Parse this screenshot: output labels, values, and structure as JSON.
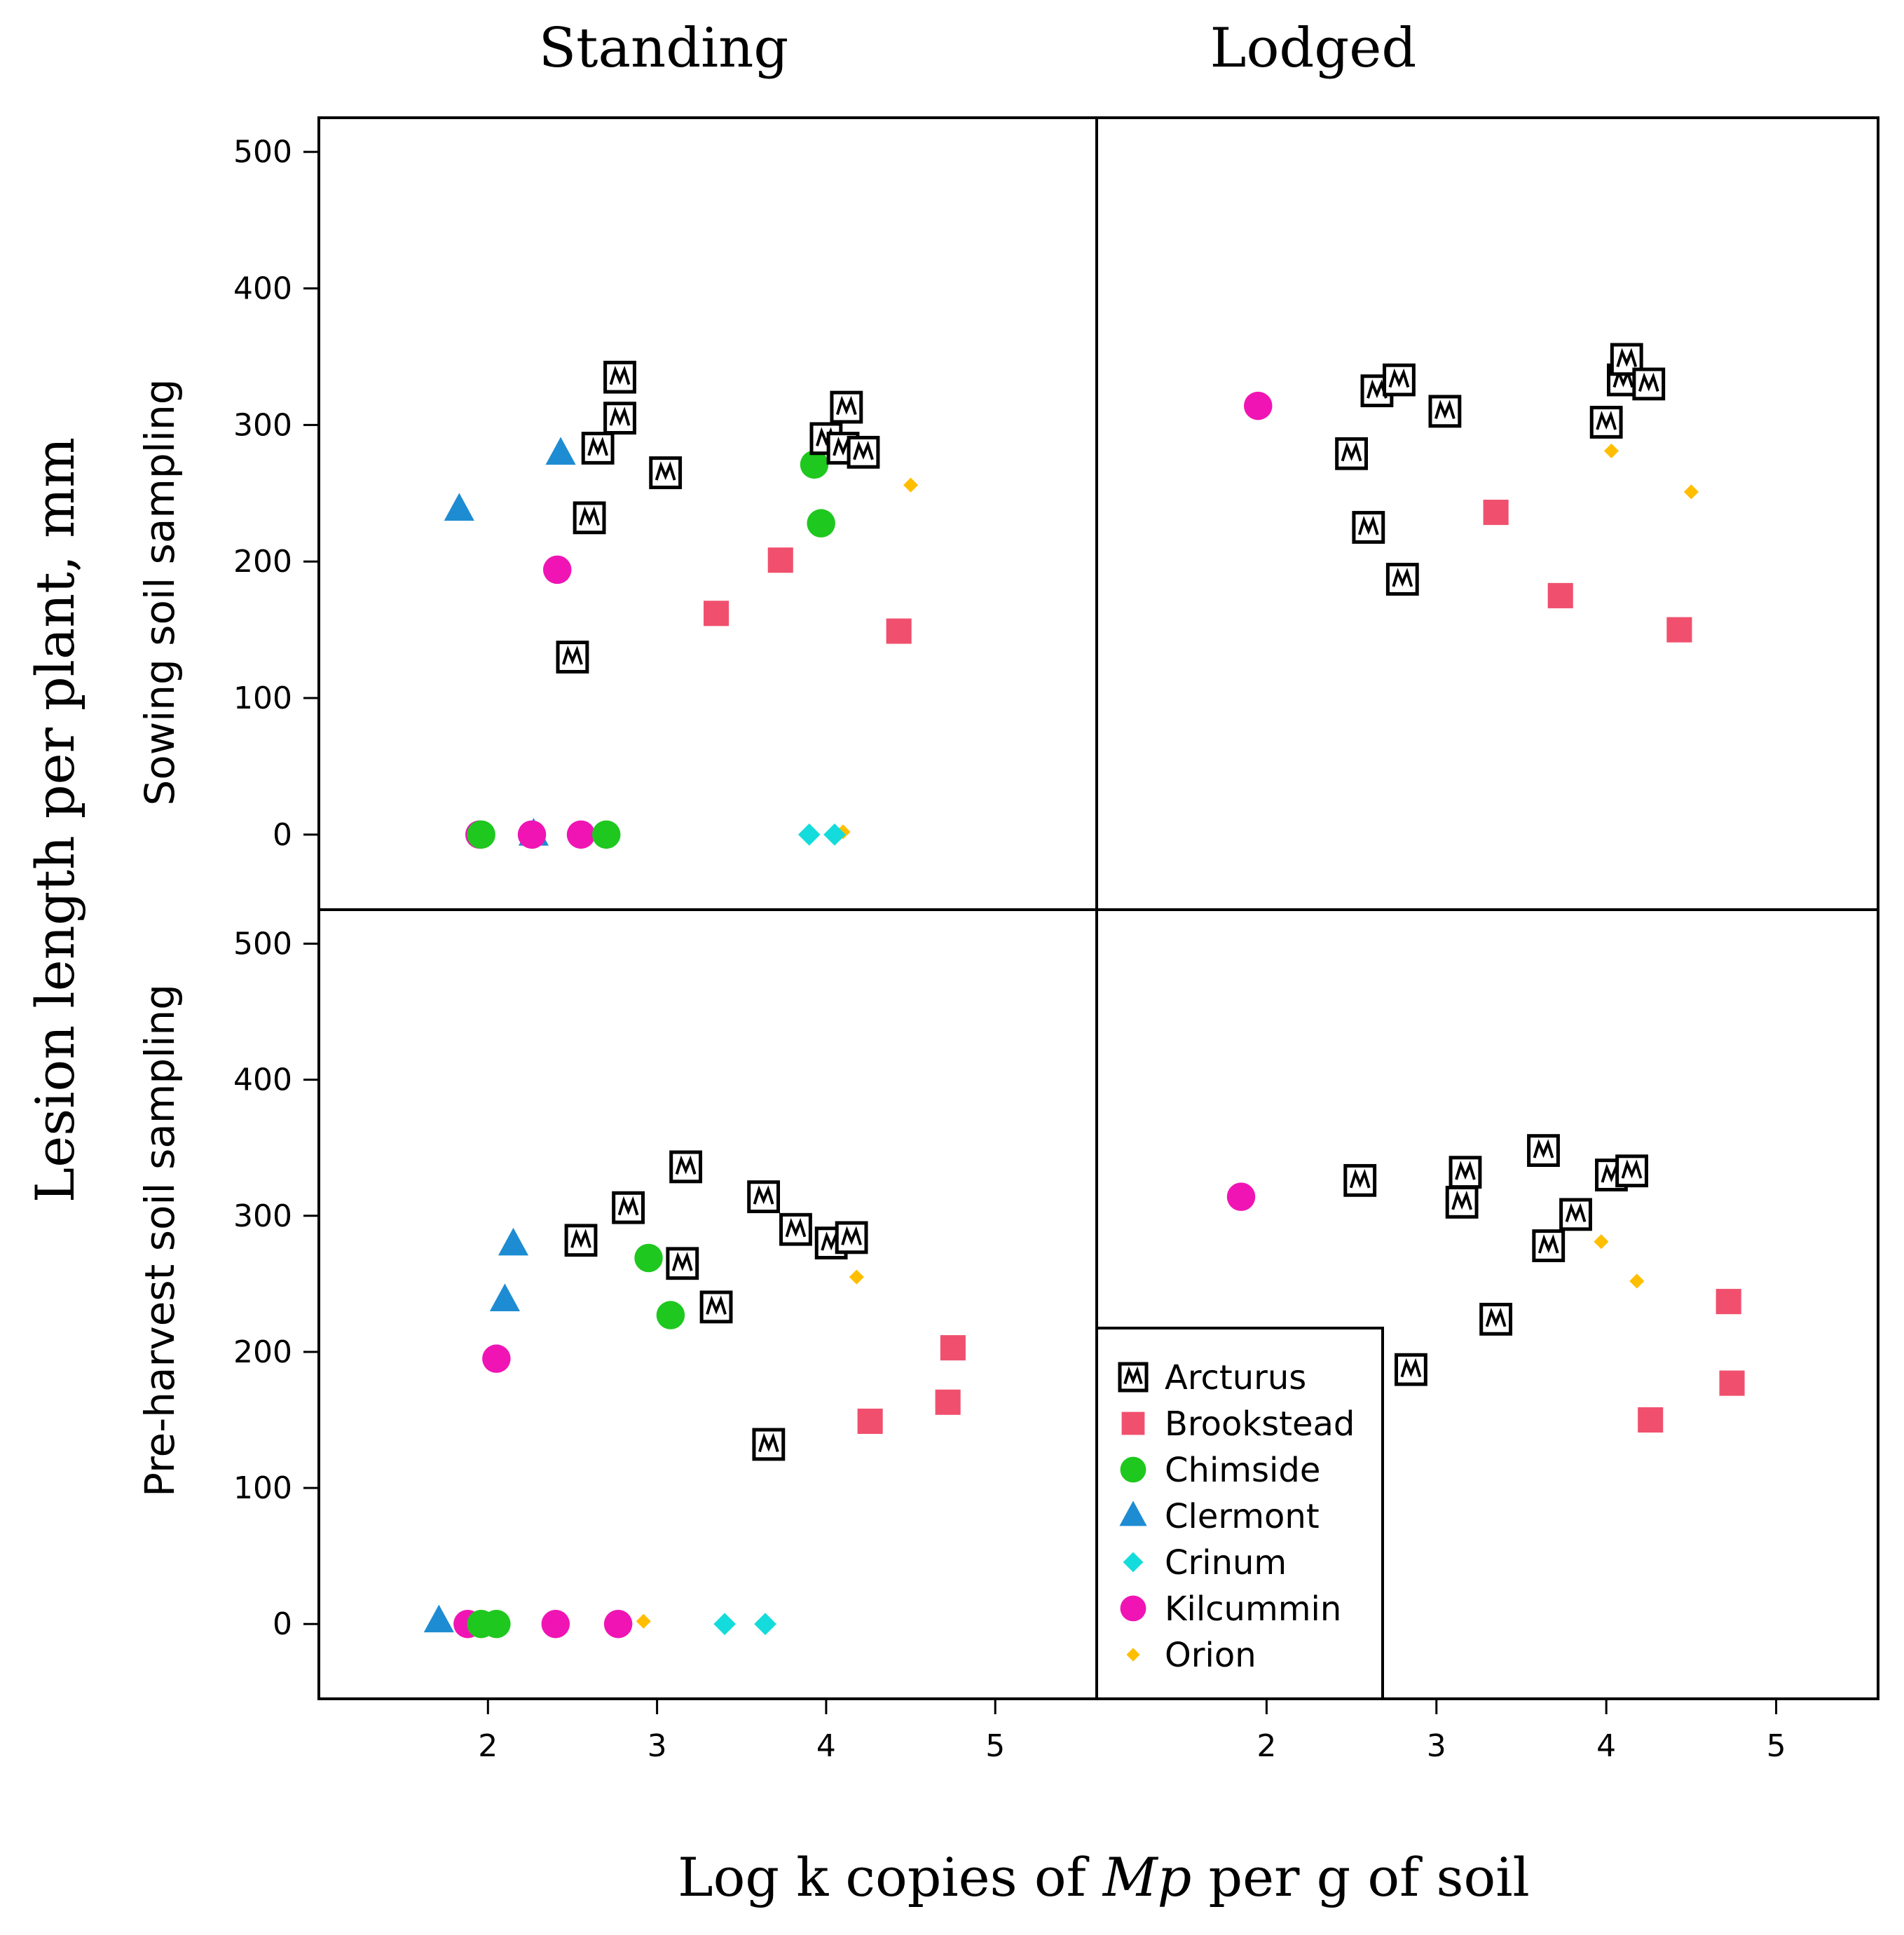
{
  "chart_data": {
    "type": "scatter",
    "layout": "2x2 panel grid",
    "column_titles": [
      "Standing",
      "Lodged"
    ],
    "row_titles": [
      "Sowing soil sampling",
      "Pre-harvest soil sampling"
    ],
    "ylabel": "Lesion length per plant, mm",
    "xlabel_parts": [
      "Log k copies of ",
      "Mp",
      " per g of soil"
    ],
    "xlim": [
      1.0,
      5.6
    ],
    "ylim": [
      -55,
      525
    ],
    "x_ticks": [
      2,
      3,
      4,
      5
    ],
    "x_tick_labels": [
      "2",
      "3",
      "4",
      "5"
    ],
    "y_ticks": [
      0,
      100,
      200,
      300,
      400,
      500
    ],
    "y_tick_labels": [
      "0",
      "100",
      "200",
      "300",
      "400",
      "500"
    ],
    "legend": [
      {
        "name": "Arcturus",
        "marker": "boxed-w",
        "color": "#000000"
      },
      {
        "name": "Brookstead",
        "marker": "square",
        "color": "#f0506e"
      },
      {
        "name": "Chimside",
        "marker": "circle",
        "color": "#1ec81e"
      },
      {
        "name": "Clermont",
        "marker": "triangle",
        "color": "#1e8cd2"
      },
      {
        "name": "Crinum",
        "marker": "diamond",
        "color": "#14dcdc"
      },
      {
        "name": "Kilcummin",
        "marker": "circle",
        "color": "#f014b4"
      },
      {
        "name": "Orion",
        "marker": "small-diamond",
        "color": "#ffbe00"
      }
    ],
    "legend_position": "lower-left of Lodged / Pre-harvest panel",
    "panels": [
      {
        "column": "Standing",
        "row": "Sowing soil sampling",
        "series": [
          {
            "name": "Arcturus",
            "points": [
              [
                2.5,
                130
              ],
              [
                2.6,
                232
              ],
              [
                2.65,
                283
              ],
              [
                2.78,
                305
              ],
              [
                2.78,
                335
              ],
              [
                3.05,
                265
              ],
              [
                4.0,
                290
              ],
              [
                4.1,
                283
              ],
              [
                4.22,
                280
              ],
              [
                4.12,
                313
              ]
            ]
          },
          {
            "name": "Brookstead",
            "points": [
              [
                3.35,
                162
              ],
              [
                3.73,
                201
              ],
              [
                4.43,
                149
              ]
            ]
          },
          {
            "name": "Chimside",
            "points": [
              [
                1.96,
                0
              ],
              [
                2.7,
                0
              ],
              [
                3.93,
                271
              ],
              [
                3.97,
                228
              ]
            ]
          },
          {
            "name": "Clermont",
            "points": [
              [
                1.83,
                238
              ],
              [
                2.43,
                279
              ],
              [
                2.27,
                0
              ]
            ]
          },
          {
            "name": "Crinum",
            "points": [
              [
                3.9,
                0
              ],
              [
                4.05,
                0
              ]
            ]
          },
          {
            "name": "Kilcummin",
            "points": [
              [
                1.95,
                0
              ],
              [
                2.26,
                0
              ],
              [
                2.55,
                0
              ],
              [
                2.41,
                194
              ]
            ]
          },
          {
            "name": "Orion",
            "points": [
              [
                4.5,
                256
              ],
              [
                4.1,
                2
              ]
            ]
          }
        ]
      },
      {
        "column": "Lodged",
        "row": "Sowing soil sampling",
        "series": [
          {
            "name": "Arcturus",
            "points": [
              [
                2.5,
                279
              ],
              [
                2.6,
                225
              ],
              [
                2.65,
                325
              ],
              [
                2.78,
                333
              ],
              [
                2.8,
                187
              ],
              [
                3.05,
                310
              ],
              [
                4.0,
                302
              ],
              [
                4.1,
                333
              ],
              [
                4.12,
                348
              ],
              [
                4.25,
                330
              ]
            ]
          },
          {
            "name": "Brookstead",
            "points": [
              [
                3.35,
                236
              ],
              [
                3.73,
                175
              ],
              [
                4.43,
                150
              ]
            ]
          },
          {
            "name": "Chimside",
            "points": []
          },
          {
            "name": "Clermont",
            "points": []
          },
          {
            "name": "Crinum",
            "points": []
          },
          {
            "name": "Kilcummin",
            "points": [
              [
                1.95,
                314
              ]
            ]
          },
          {
            "name": "Orion",
            "points": [
              [
                4.03,
                281
              ],
              [
                4.5,
                251
              ]
            ]
          }
        ]
      },
      {
        "column": "Standing",
        "row": "Pre-harvest soil sampling",
        "series": [
          {
            "name": "Arcturus",
            "points": [
              [
                2.55,
                282
              ],
              [
                2.83,
                306
              ],
              [
                3.15,
                265
              ],
              [
                3.17,
                336
              ],
              [
                3.35,
                233
              ],
              [
                3.63,
                314
              ],
              [
                3.66,
                132
              ],
              [
                3.82,
                290
              ],
              [
                4.03,
                280
              ],
              [
                4.15,
                284
              ]
            ]
          },
          {
            "name": "Brookstead",
            "points": [
              [
                4.26,
                149
              ],
              [
                4.72,
                163
              ],
              [
                4.75,
                203
              ]
            ]
          },
          {
            "name": "Chimside",
            "points": [
              [
                1.96,
                0
              ],
              [
                2.05,
                0
              ],
              [
                2.95,
                269
              ],
              [
                3.08,
                227
              ]
            ]
          },
          {
            "name": "Clermont",
            "points": [
              [
                1.71,
                2
              ],
              [
                2.1,
                238
              ],
              [
                2.15,
                279
              ]
            ]
          },
          {
            "name": "Crinum",
            "points": [
              [
                3.4,
                0
              ],
              [
                3.64,
                0
              ]
            ]
          },
          {
            "name": "Kilcummin",
            "points": [
              [
                1.88,
                0
              ],
              [
                2.05,
                195
              ],
              [
                2.4,
                0
              ],
              [
                2.77,
                0
              ]
            ]
          },
          {
            "name": "Orion",
            "points": [
              [
                2.92,
                2
              ],
              [
                4.18,
                255
              ],
              [
                4.0,
                285
              ]
            ]
          }
        ]
      },
      {
        "column": "Lodged",
        "row": "Pre-harvest soil sampling",
        "series": [
          {
            "name": "Arcturus",
            "points": [
              [
                2.55,
                326
              ],
              [
                2.85,
                187
              ],
              [
                3.15,
                310
              ],
              [
                3.17,
                332
              ],
              [
                3.35,
                224
              ],
              [
                3.63,
                348
              ],
              [
                3.66,
                278
              ],
              [
                3.82,
                301
              ],
              [
                4.03,
                330
              ],
              [
                4.15,
                333
              ]
            ]
          },
          {
            "name": "Brookstead",
            "points": [
              [
                4.26,
                150
              ],
              [
                4.72,
                237
              ],
              [
                4.74,
                177
              ]
            ]
          },
          {
            "name": "Chimside",
            "points": []
          },
          {
            "name": "Clermont",
            "points": []
          },
          {
            "name": "Crinum",
            "points": []
          },
          {
            "name": "Kilcummin",
            "points": [
              [
                1.85,
                314
              ]
            ]
          },
          {
            "name": "Orion",
            "points": [
              [
                3.97,
                281
              ],
              [
                4.18,
                252
              ]
            ]
          }
        ]
      }
    ]
  }
}
